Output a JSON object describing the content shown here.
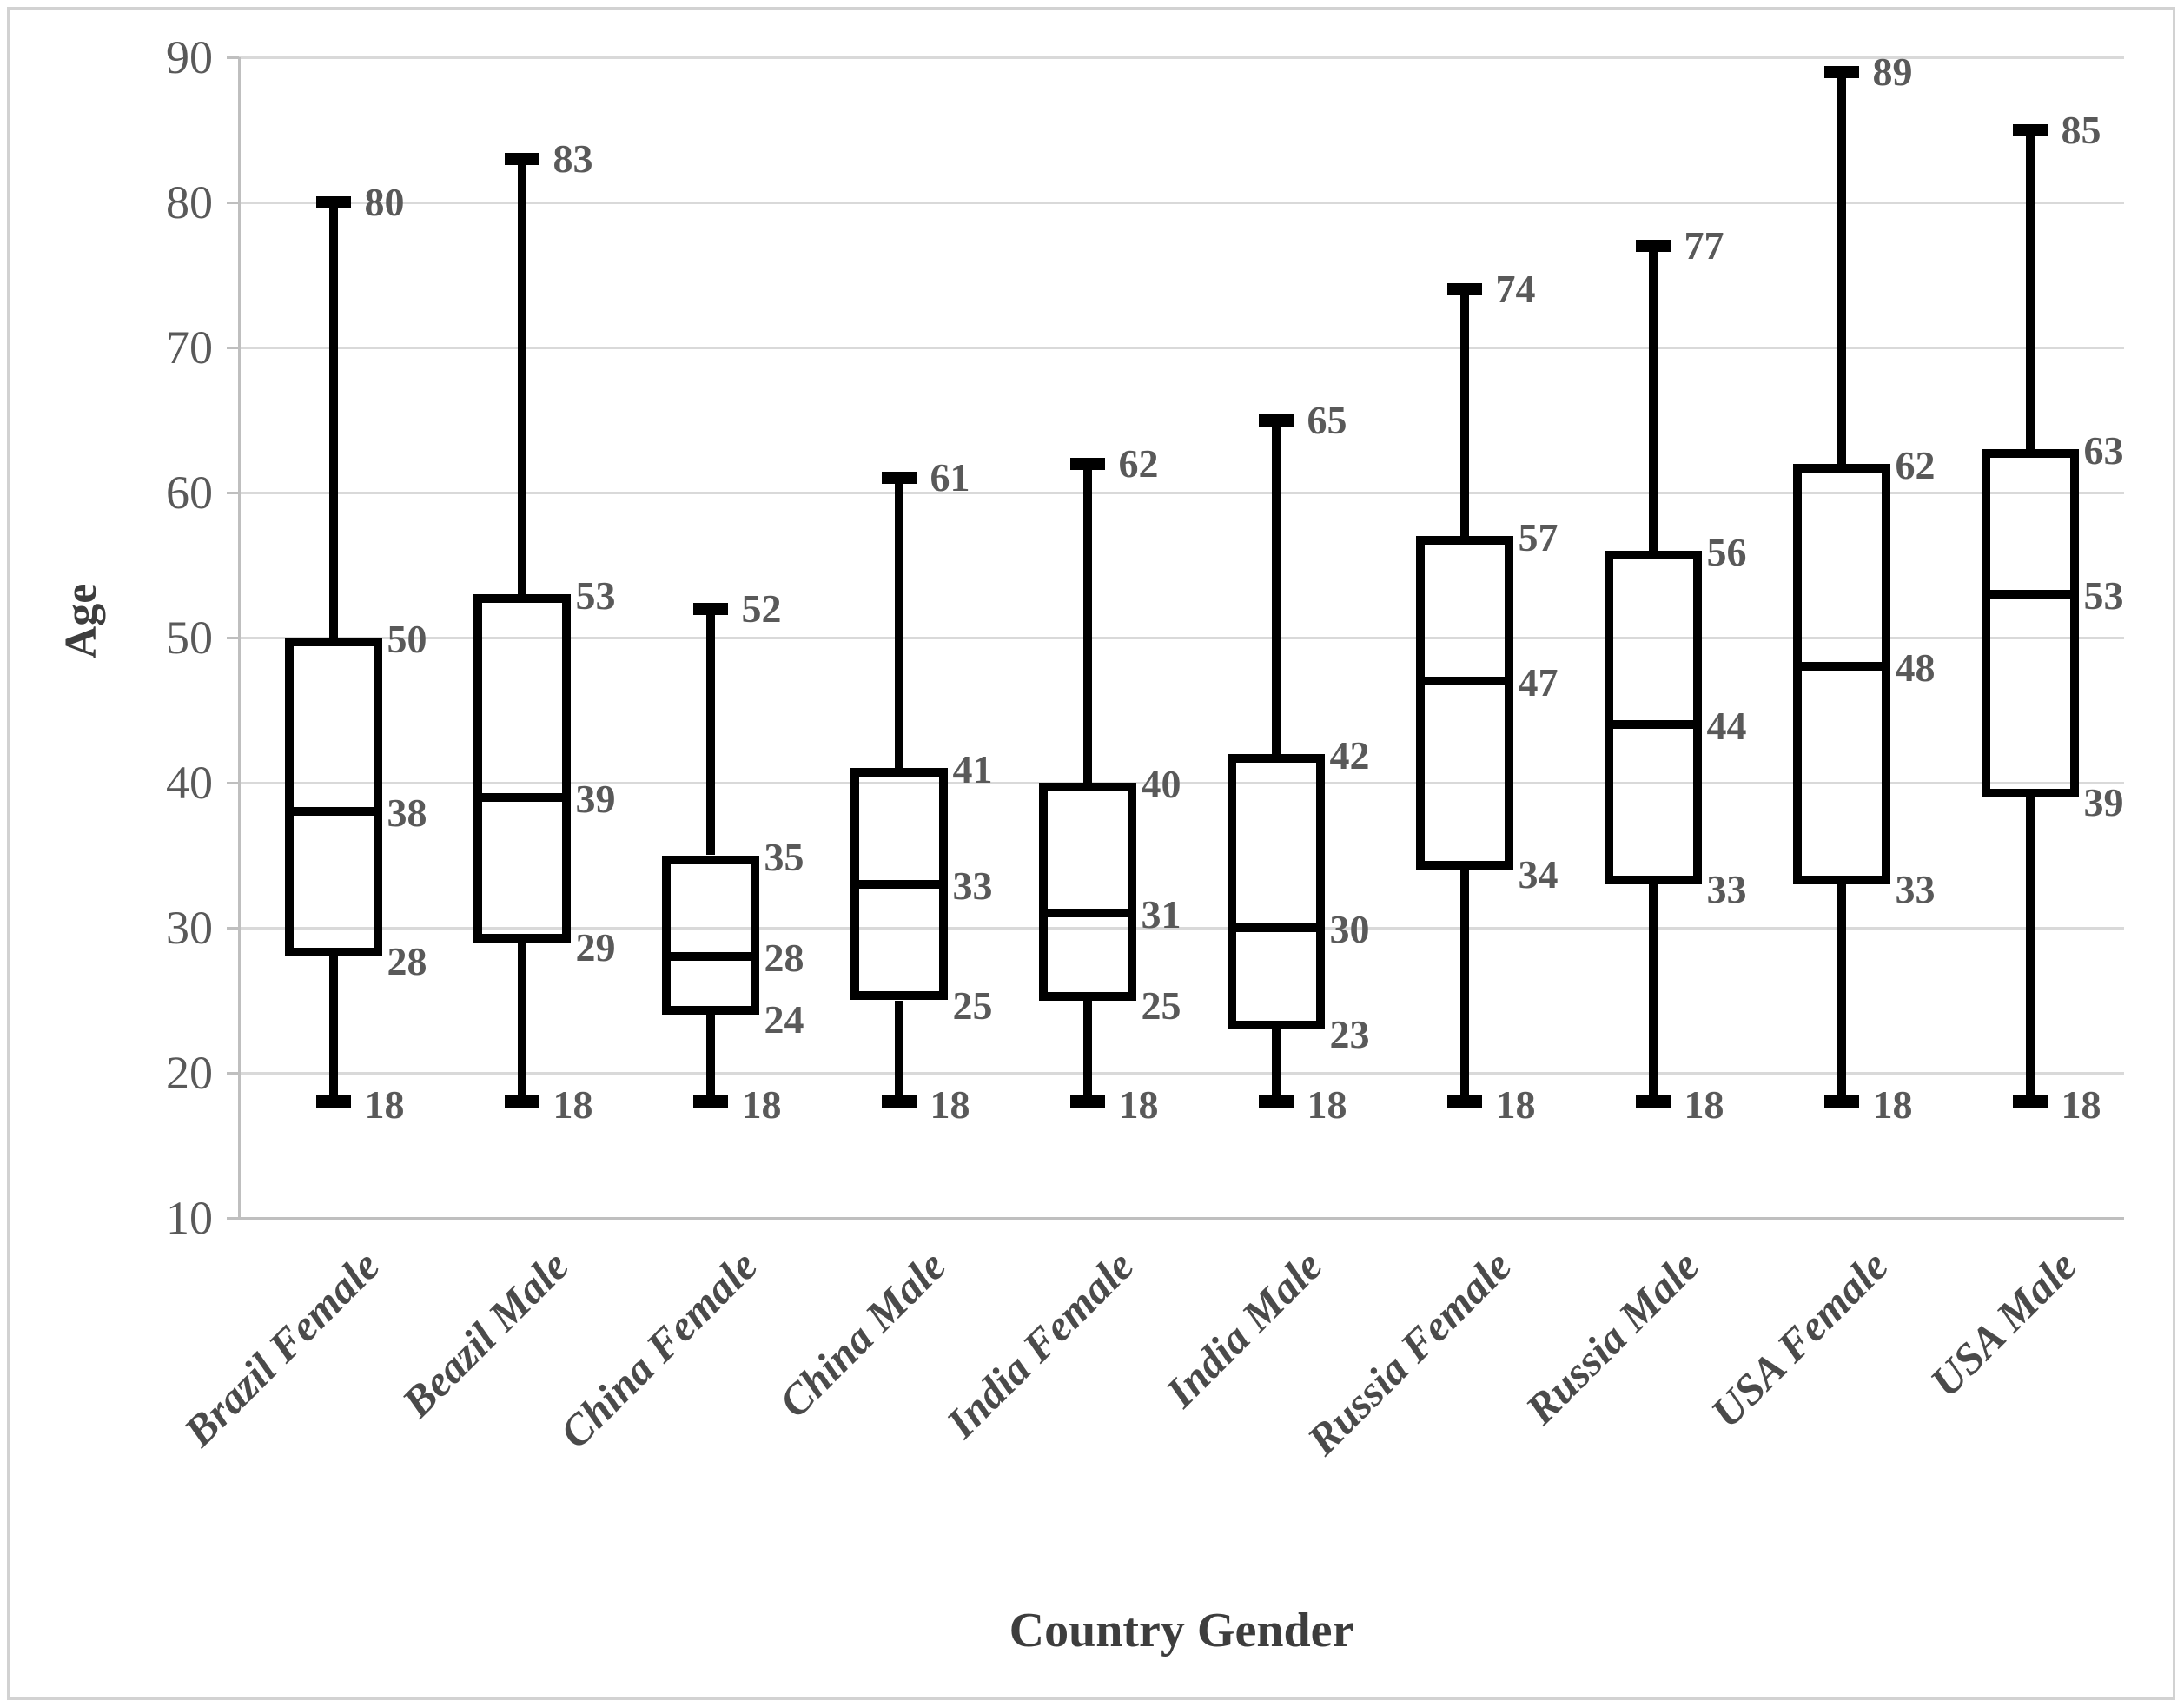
{
  "chart_data": {
    "type": "boxplot",
    "title": "",
    "xlabel": "Country Gender",
    "ylabel": "Age",
    "ylim": [
      10,
      90
    ],
    "yticks": [
      10,
      20,
      30,
      40,
      50,
      60,
      70,
      80,
      90
    ],
    "grid": true,
    "legend_position": "none",
    "categories": [
      "Brazil Female",
      "Beazil Male",
      "China Female",
      "China Male",
      "India Female",
      "India Male",
      "Russia Female",
      "Russia Male",
      "USA Female",
      "USA Male"
    ],
    "series": [
      {
        "name": "Brazil Female",
        "min": 18,
        "q1": 28,
        "median": 38,
        "q3": 50,
        "max": 80
      },
      {
        "name": "Beazil Male",
        "min": 18,
        "q1": 29,
        "median": 39,
        "q3": 53,
        "max": 83
      },
      {
        "name": "China Female",
        "min": 18,
        "q1": 24,
        "median": 28,
        "q3": 35,
        "max": 52
      },
      {
        "name": "China Male",
        "min": 18,
        "q1": 25,
        "median": 33,
        "q3": 41,
        "max": 61
      },
      {
        "name": "India Female",
        "min": 18,
        "q1": 25,
        "median": 31,
        "q3": 40,
        "max": 62
      },
      {
        "name": "India Male",
        "min": 18,
        "q1": 23,
        "median": 30,
        "q3": 42,
        "max": 65
      },
      {
        "name": "Russia Female",
        "min": 18,
        "q1": 34,
        "median": 47,
        "q3": 57,
        "max": 74
      },
      {
        "name": "Russia Male",
        "min": 18,
        "q1": 33,
        "median": 44,
        "q3": 56,
        "max": 77
      },
      {
        "name": "USA Female",
        "min": 18,
        "q1": 33,
        "median": 48,
        "q3": 62,
        "max": 89
      },
      {
        "name": "USA Male",
        "min": 18,
        "q1": 39,
        "median": 53,
        "q3": 63,
        "max": 85
      }
    ],
    "colors": {
      "box_stroke": "#000000",
      "grid": "#d9d9d9",
      "axis": "#bfbfbf",
      "tick_text": "#595959",
      "value_label_text": "#595959",
      "category_text": "#4a4a4a",
      "title_text": "#3d3d3d",
      "background": "#ffffff",
      "frame": "#d2d2d2"
    }
  }
}
